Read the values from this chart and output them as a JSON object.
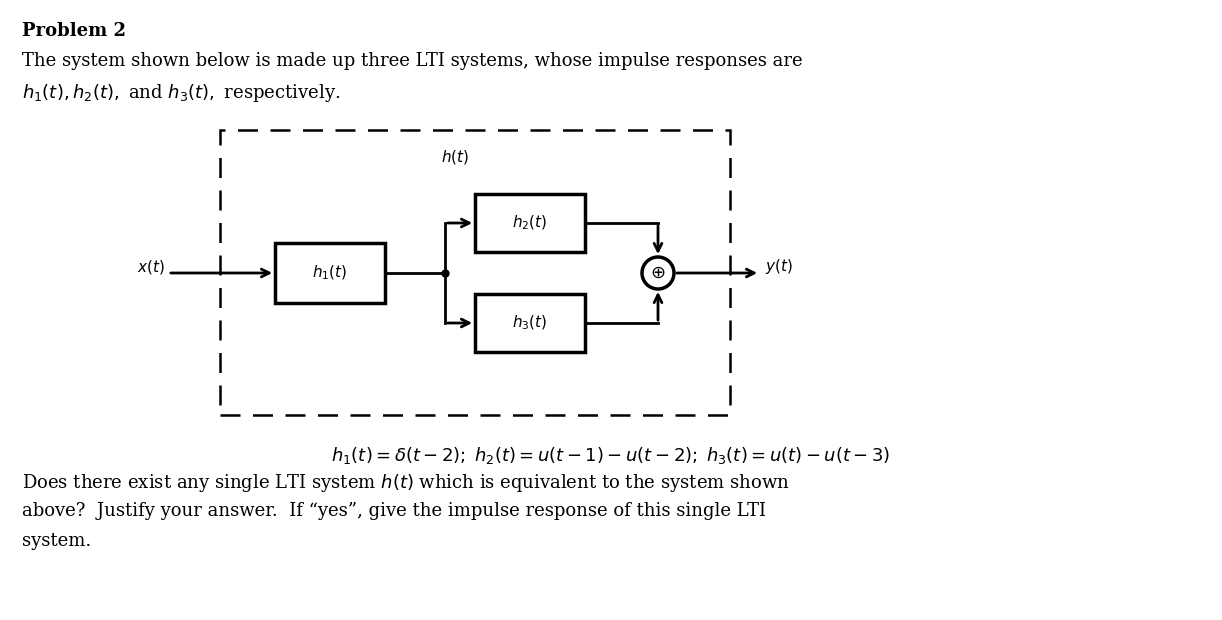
{
  "title": "Problem 2",
  "text_line1": "The system shown below is made up three LTI systems, whose impulse responses are",
  "text_line2": "$h_1(t), h_2(t),$ and $h_3(t),$ respectively.",
  "equation": "$h_1(t) = \\delta(t-2);\\; h_2(t) = u(t-1) - u(t-2);\\; h_3(t) = u(t) - u(t-3)$",
  "text_bottom1": "Does there exist any single LTI system $h(t)$ which is equivalent to the system shown",
  "text_bottom2": "above?  Justify your answer.  If “yes”, give the impulse response of this single LTI",
  "text_bottom3": "system.",
  "bg_color": "#ffffff",
  "label_h1": "$h_1(t)$",
  "label_h2": "$h_2(t)$",
  "label_h3": "$h_3(t)$",
  "label_ht": "$h(t)$",
  "label_xt": "$x(t)$",
  "label_yt": "$y(t)$",
  "title_fontsize": 13,
  "body_fontsize": 13,
  "diagram_fontsize": 11
}
